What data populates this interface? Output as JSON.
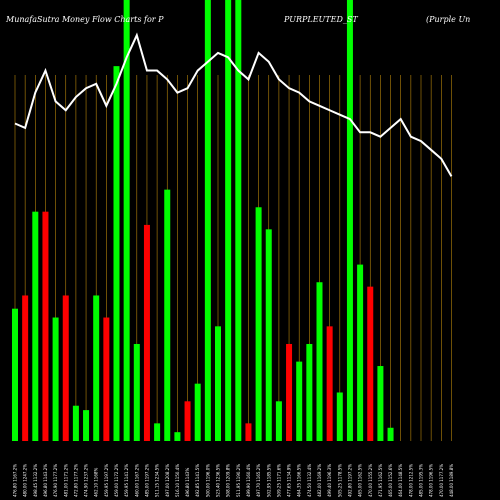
{
  "chart_data": {
    "type": "bar",
    "title_parts": [
      "MunafaSutra  Money Flow  Charts for P",
      "PURPLEUTED_ST",
      "(Purple   Un"
    ],
    "colors": {
      "up": "#00ff00",
      "down": "#ff0000",
      "line": "#ffffff",
      "grid": "#b8860b",
      "background": "#000000"
    },
    "ylim": [
      0,
      100
    ],
    "categories": [
      "476.80 1167.2%",
      "480.00 1247.2%",
      "498.45 1132.2%",
      "496.80 1143.2%",
      "476.90 1177.2%",
      "481.00 1171.2%",
      "472.80 1177.2%",
      "474.90 1237.2%",
      "462.10 1168%",
      "459.95 1197.2%",
      "459.00 1172.2%",
      "459.95 1141.2%",
      "460.00 1167.2%",
      "485.00 1197.2%",
      "511.15 1234.5%",
      "497.00 1208.2%",
      "516.10 1150.4%",
      "496.80 1143%",
      "492.85 1141.5%",
      "500.00 1196.0%",
      "523.40 1236.5%",
      "508.00 1209.8%",
      "511.95 1190.2%",
      "499.90 1160.4%",
      "497.70 1165.2%",
      "502.95 1185.5%",
      "509.25 1171.6%",
      "477.65 1134.9%",
      "464.35 1166.5%",
      "474.50 1132.4%",
      "482.00 1169.2%",
      "499.40 1196.3%",
      "505.25 1178.5%",
      "492.80 1197.2%",
      "465.00 1162.5%",
      "470.00 1155.2%",
      "471.95 1162.5%",
      "465.00 1152.6%",
      "464.00 1148.5%",
      "478.00 1212.5%",
      "485.00 1195.3%",
      "478.00 1196.5%",
      "470.00 1177.2%",
      "448.00 1189.8%"
    ],
    "bar_directions": [
      "up",
      "down",
      "up",
      "down",
      "up",
      "down",
      "up",
      "up",
      "up",
      "down",
      "up",
      "up",
      "up",
      "down",
      "up",
      "up",
      "up",
      "down",
      "up",
      "up",
      "up",
      "up",
      "up",
      "down",
      "up",
      "up",
      "up",
      "down",
      "up",
      "up",
      "up",
      "down",
      "up",
      "up",
      "up",
      "down",
      "up",
      "up",
      "up",
      "up",
      "up",
      "down",
      "up",
      "up"
    ],
    "values": [
      30,
      33,
      52,
      52,
      28,
      33,
      8,
      7,
      33,
      28,
      85,
      100,
      22,
      49,
      4,
      57,
      2,
      9,
      13,
      100,
      26,
      100,
      100,
      4,
      53,
      48,
      9,
      22,
      18,
      22,
      36,
      26,
      11,
      100,
      40,
      35,
      17,
      3,
      0,
      0,
      0,
      0,
      0,
      0
    ],
    "line": [
      72,
      71,
      79,
      84,
      77,
      75,
      78,
      80,
      81,
      76,
      81,
      87,
      92,
      84,
      84,
      82,
      79,
      80,
      84,
      86,
      88,
      87,
      84,
      82,
      88,
      86,
      82,
      80,
      79,
      77,
      76,
      75,
      74,
      73,
      70,
      70,
      69,
      71,
      73,
      69,
      68,
      66,
      64,
      60
    ]
  }
}
